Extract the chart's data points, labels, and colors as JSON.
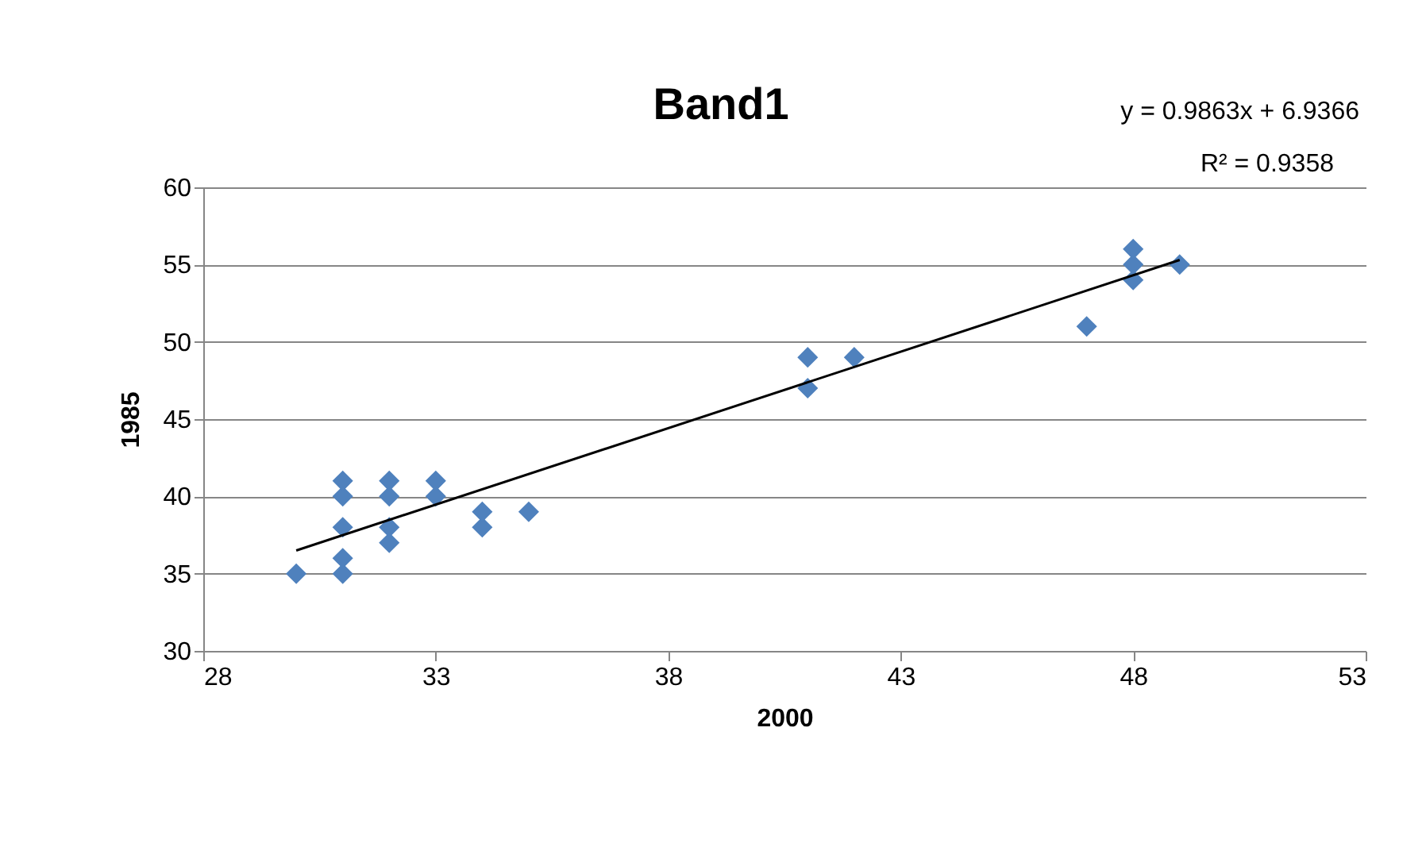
{
  "chart_data": {
    "type": "scatter",
    "title": "Band1",
    "xlabel": "2000",
    "ylabel": "1985",
    "annotations": [
      "y = 0.9863x + 6.9366",
      "R² = 0.9358"
    ],
    "xlim": [
      28,
      53
    ],
    "xticks": [
      28,
      33,
      38,
      43,
      48,
      53
    ],
    "ylim": [
      30,
      60
    ],
    "yticks": [
      30,
      35,
      40,
      45,
      50,
      55,
      60
    ],
    "grid": "y",
    "marker": "diamond",
    "series": [
      {
        "type": "scatter",
        "color": "#4f81bd",
        "x": [
          30,
          31,
          31,
          31,
          31,
          31,
          32,
          32,
          32,
          32,
          33,
          33,
          34,
          34,
          35,
          41,
          41,
          42,
          47,
          48,
          48,
          48,
          49
        ],
        "values": [
          35,
          35,
          36,
          38,
          40,
          41,
          37,
          38,
          40,
          41,
          40,
          41,
          38,
          39,
          39,
          47,
          49,
          49,
          51,
          54,
          55,
          56,
          55
        ]
      },
      {
        "type": "line",
        "color": "#000000",
        "marker": "none",
        "line_style": "solid",
        "x": [
          30,
          49
        ],
        "values": [
          36.5,
          55.3
        ]
      }
    ]
  }
}
